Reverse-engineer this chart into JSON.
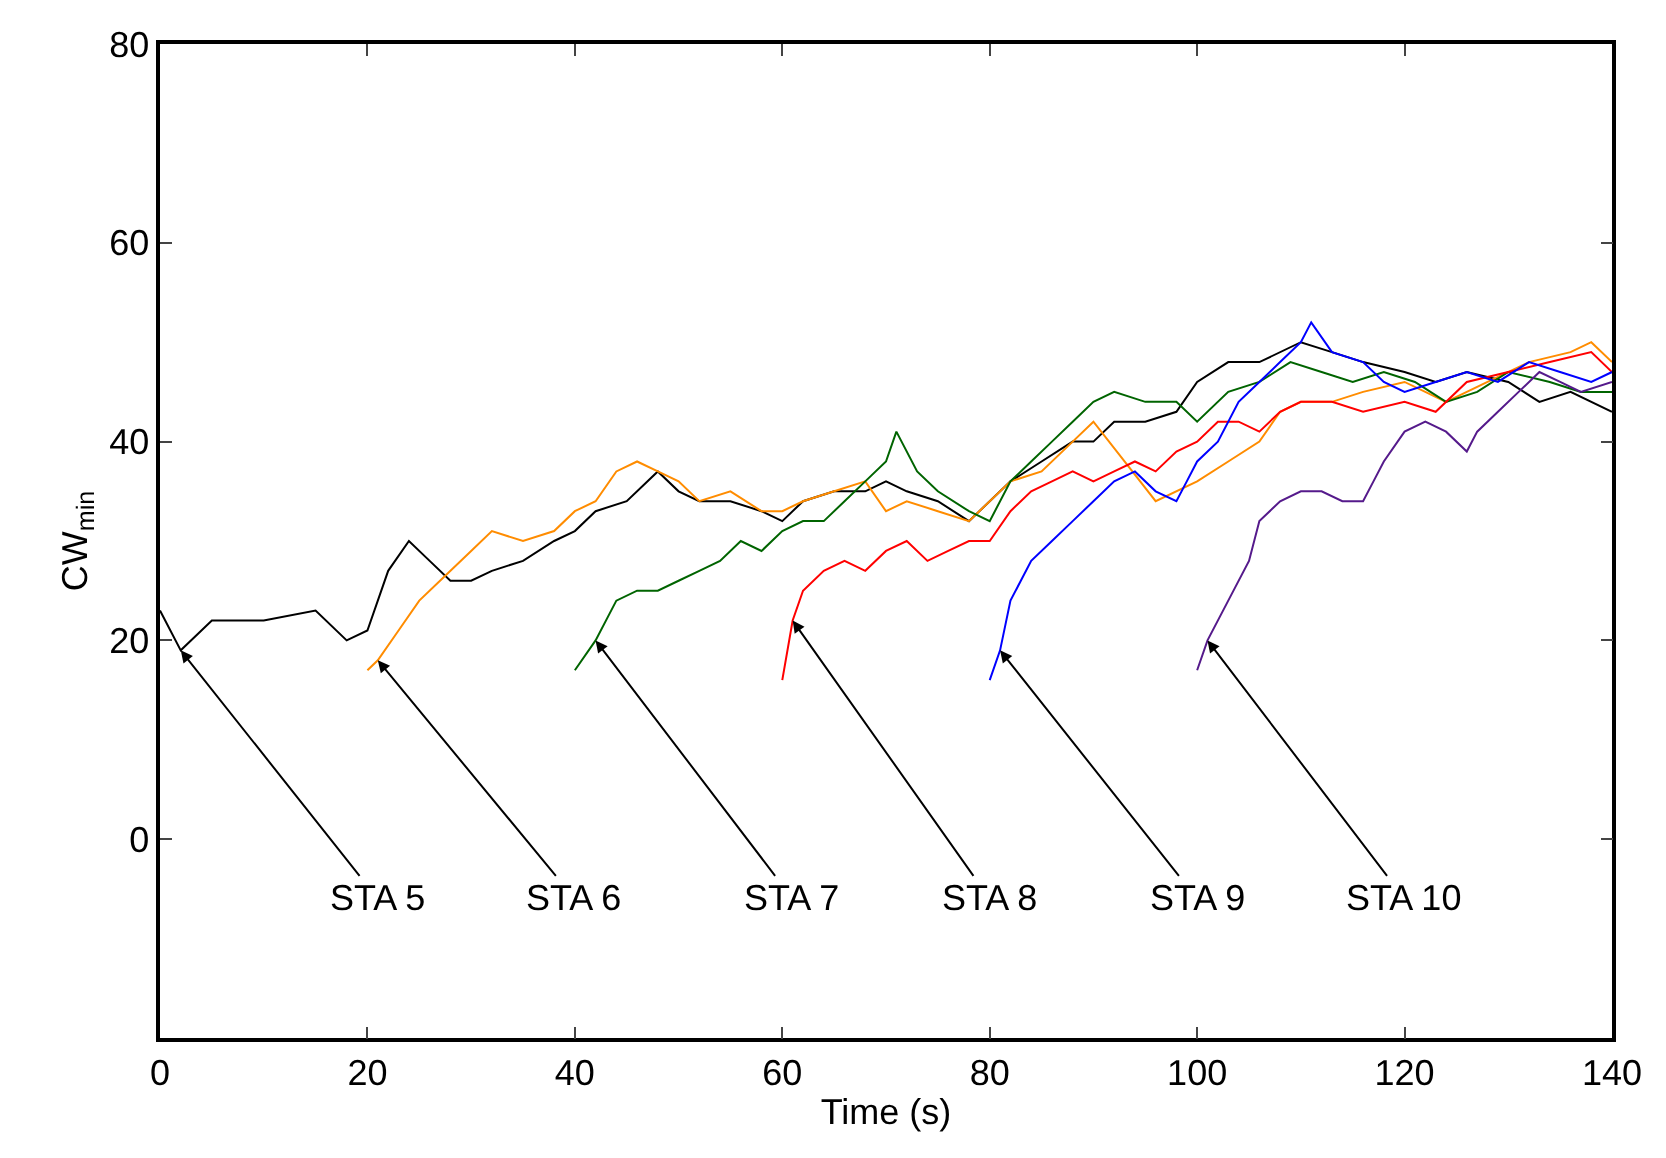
{
  "chart_data": {
    "type": "line",
    "xlabel": "Time (s)",
    "ylabel": "CW$_{min}$",
    "xlim": [
      0,
      140
    ],
    "xticks": [
      0,
      20,
      40,
      60,
      80,
      100,
      120,
      140
    ],
    "ylim": [
      -20,
      80
    ],
    "yticks": [
      0,
      20,
      40,
      60,
      80
    ],
    "marker": "none",
    "line_style": "solid",
    "series": [
      {
        "color": "#000000",
        "x": [
          0,
          2,
          5,
          10,
          15,
          18,
          20,
          22,
          24,
          26,
          28,
          30,
          32,
          35,
          38,
          40,
          42,
          45,
          48,
          50,
          52,
          55,
          58,
          60,
          62,
          65,
          68,
          70,
          72,
          75,
          78,
          80,
          82,
          85,
          88,
          90,
          92,
          95,
          98,
          100,
          103,
          106,
          110,
          113,
          116,
          120,
          123,
          126,
          130,
          133,
          136,
          140
        ],
        "values": [
          23,
          19,
          22,
          22,
          23,
          20,
          21,
          27,
          30,
          28,
          26,
          26,
          27,
          28,
          30,
          31,
          33,
          34,
          37,
          35,
          34,
          34,
          33,
          32,
          34,
          35,
          35,
          36,
          35,
          34,
          32,
          34,
          36,
          38,
          40,
          40,
          42,
          42,
          43,
          46,
          48,
          48,
          50,
          49,
          48,
          47,
          46,
          47,
          46,
          44,
          45,
          43
        ]
      },
      {
        "color": "#ff8c00",
        "x": [
          20,
          21,
          23,
          25,
          27,
          30,
          32,
          35,
          38,
          40,
          42,
          44,
          46,
          48,
          50,
          52,
          55,
          58,
          60,
          62,
          65,
          68,
          70,
          72,
          75,
          78,
          80,
          82,
          85,
          88,
          90,
          93,
          96,
          100,
          103,
          106,
          108,
          110,
          113,
          116,
          120,
          124,
          128,
          132,
          136,
          138,
          140
        ],
        "values": [
          17,
          18,
          21,
          24,
          26,
          29,
          31,
          30,
          31,
          33,
          34,
          37,
          38,
          37,
          36,
          34,
          35,
          33,
          33,
          34,
          35,
          36,
          33,
          34,
          33,
          32,
          34,
          36,
          37,
          40,
          42,
          38,
          34,
          36,
          38,
          40,
          43,
          44,
          44,
          45,
          46,
          44,
          46,
          48,
          49,
          50,
          48
        ]
      },
      {
        "color": "#006400",
        "x": [
          40,
          42,
          44,
          46,
          48,
          50,
          52,
          54,
          56,
          58,
          60,
          62,
          64,
          66,
          68,
          70,
          71,
          73,
          75,
          78,
          80,
          82,
          84,
          86,
          88,
          90,
          92,
          95,
          98,
          100,
          103,
          106,
          109,
          112,
          115,
          118,
          121,
          124,
          127,
          130,
          134,
          137,
          140
        ],
        "values": [
          17,
          20,
          24,
          25,
          25,
          26,
          27,
          28,
          30,
          29,
          31,
          32,
          32,
          34,
          36,
          38,
          41,
          37,
          35,
          33,
          32,
          36,
          38,
          40,
          42,
          44,
          45,
          44,
          44,
          42,
          45,
          46,
          48,
          47,
          46,
          47,
          46,
          44,
          45,
          47,
          46,
          45,
          45
        ]
      },
      {
        "color": "#ff0000",
        "x": [
          60,
          61,
          62,
          64,
          66,
          68,
          70,
          72,
          74,
          76,
          78,
          80,
          82,
          84,
          86,
          88,
          90,
          92,
          94,
          96,
          98,
          100,
          102,
          104,
          106,
          108,
          110,
          113,
          116,
          120,
          123,
          126,
          130,
          134,
          138,
          140
        ],
        "values": [
          16,
          22,
          25,
          27,
          28,
          27,
          29,
          30,
          28,
          29,
          30,
          30,
          33,
          35,
          36,
          37,
          36,
          37,
          38,
          37,
          39,
          40,
          42,
          42,
          41,
          43,
          44,
          44,
          43,
          44,
          43,
          46,
          47,
          48,
          49,
          47
        ]
      },
      {
        "color": "#0000ff",
        "x": [
          80,
          81,
          82,
          83,
          84,
          86,
          88,
          90,
          92,
          94,
          96,
          98,
          99,
          100,
          102,
          104,
          106,
          108,
          110,
          111,
          113,
          116,
          118,
          120,
          123,
          126,
          129,
          132,
          135,
          138,
          140
        ],
        "values": [
          16,
          19,
          24,
          26,
          28,
          30,
          32,
          34,
          36,
          37,
          35,
          34,
          36,
          38,
          40,
          44,
          46,
          48,
          50,
          52,
          49,
          48,
          46,
          45,
          46,
          47,
          46,
          48,
          47,
          46,
          47
        ]
      },
      {
        "color": "#551a8b",
        "x": [
          100,
          101,
          103,
          105,
          106,
          108,
          110,
          112,
          114,
          116,
          117,
          118,
          120,
          122,
          124,
          126,
          127,
          129,
          131,
          133,
          135,
          137,
          140
        ],
        "values": [
          17,
          20,
          24,
          28,
          32,
          34,
          35,
          35,
          34,
          34,
          36,
          38,
          41,
          42,
          41,
          39,
          41,
          43,
          45,
          47,
          46,
          45,
          46
        ]
      }
    ],
    "annotations": [
      {
        "text": "STA 5",
        "x": 2,
        "y": 19
      },
      {
        "text": "STA 6",
        "x": 21,
        "y": 18
      },
      {
        "text": "STA 7",
        "x": 42,
        "y": 20
      },
      {
        "text": "STA 8",
        "x": 61,
        "y": 22
      },
      {
        "text": "STA 9",
        "x": 81,
        "y": 19
      },
      {
        "text": "STA 10",
        "x": 101,
        "y": 20
      }
    ]
  }
}
